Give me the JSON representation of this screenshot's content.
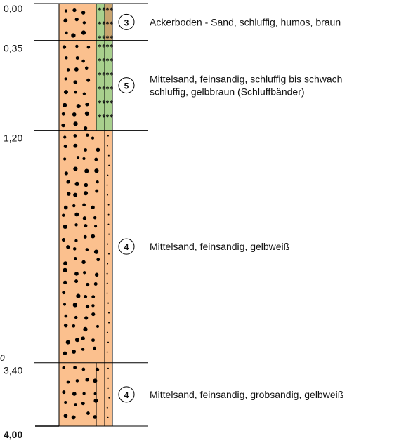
{
  "depths": [
    {
      "value": 0,
      "label": "0,00"
    },
    {
      "value": 0.35,
      "label": "0,35"
    },
    {
      "value": 1.2,
      "label": "1,20"
    },
    {
      "value": 3.4,
      "label": "3,40"
    },
    {
      "value": 4.0,
      "label": "4,00"
    }
  ],
  "layers": [
    {
      "number": "3",
      "description": [
        "Ackerboden - Sand, schluffig, humos, braun"
      ]
    },
    {
      "number": "5",
      "description": [
        "Mittelsand, feinsandig, schluffig bis schwach",
        "schluffig, gelbbraun (Schluffbänder)"
      ]
    },
    {
      "number": "4",
      "description": [
        "Mittelsand, feinsandig, gelbweiß"
      ]
    },
    {
      "number": "4",
      "description": [
        "Mittelsand, feinsandig, grobsandig, gelbweiß"
      ]
    }
  ],
  "annotation": "0"
}
